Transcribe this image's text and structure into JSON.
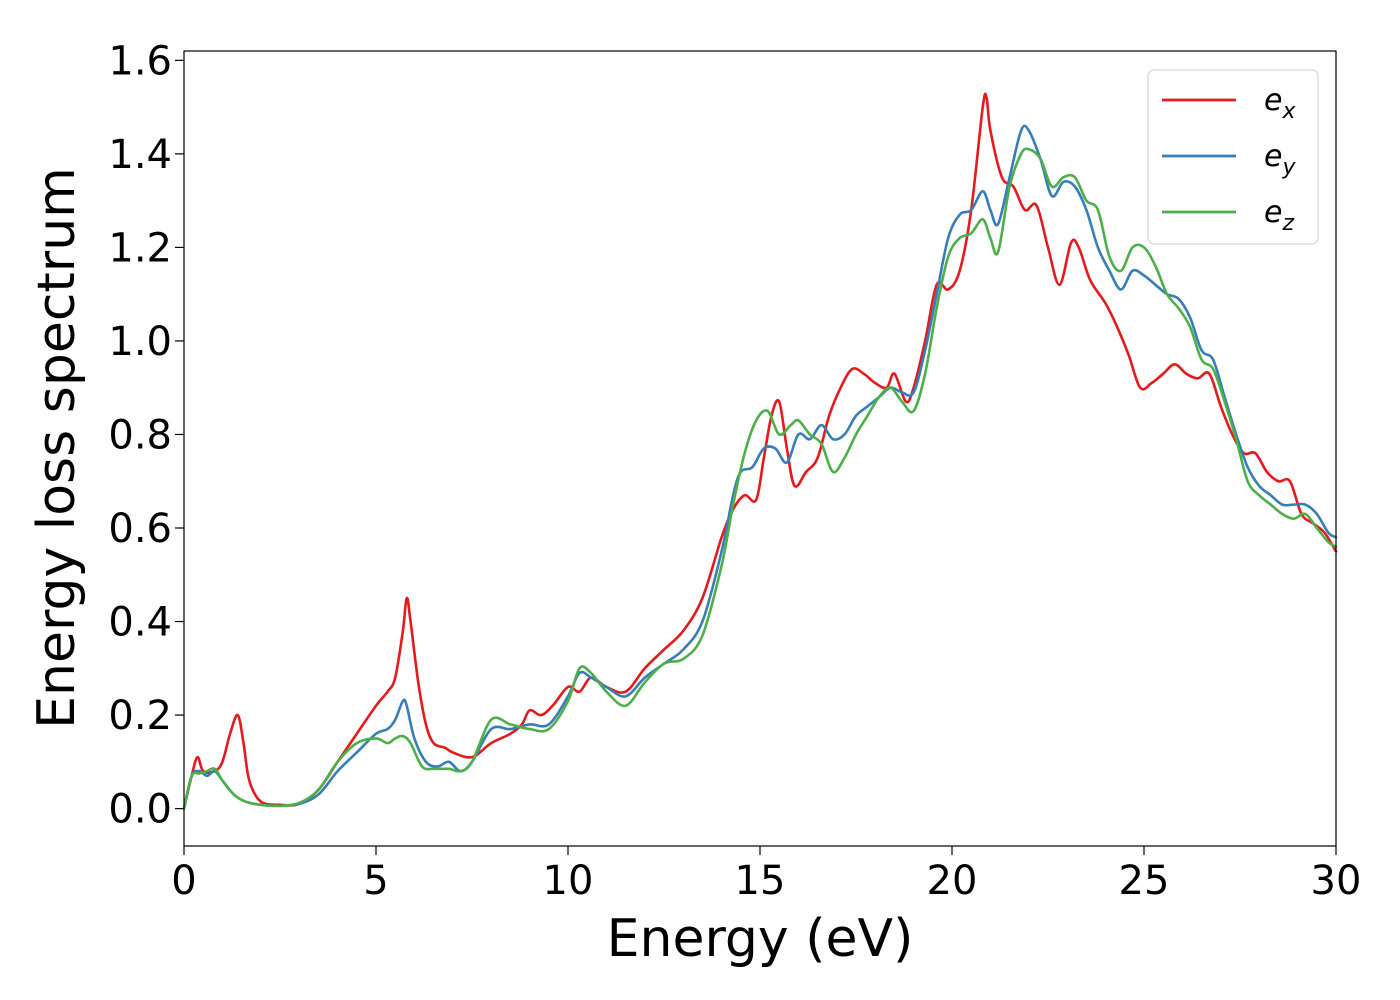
{
  "chart_data": {
    "type": "line",
    "title": "",
    "xlabel": "Energy (eV)",
    "ylabel": "Energy loss spectrum",
    "xlim": [
      0,
      30
    ],
    "ylim": [
      -0.08,
      1.62
    ],
    "xticks": [
      0,
      5,
      10,
      15,
      20,
      25,
      30
    ],
    "xtick_labels": [
      "0",
      "5",
      "10",
      "15",
      "20",
      "25",
      "30"
    ],
    "yticks": [
      0.0,
      0.2,
      0.4,
      0.6,
      0.8,
      1.0,
      1.2,
      1.4,
      1.6
    ],
    "ytick_labels": [
      "0.0",
      "0.2",
      "0.4",
      "0.6",
      "0.8",
      "1.0",
      "1.2",
      "1.4",
      "1.6"
    ],
    "grid": false,
    "legend_position": "top-right",
    "series": [
      {
        "name": "e_x",
        "label_main": "e",
        "label_sub": "x",
        "color": "#e41a1c",
        "points": [
          [
            0,
            0
          ],
          [
            0.2,
            0.07
          ],
          [
            0.35,
            0.11
          ],
          [
            0.5,
            0.08
          ],
          [
            0.8,
            0.08
          ],
          [
            1.0,
            0.1
          ],
          [
            1.2,
            0.16
          ],
          [
            1.4,
            0.2
          ],
          [
            1.55,
            0.14
          ],
          [
            1.7,
            0.06
          ],
          [
            2.0,
            0.015
          ],
          [
            2.5,
            0.008
          ],
          [
            3.0,
            0.01
          ],
          [
            3.5,
            0.04
          ],
          [
            4.0,
            0.1
          ],
          [
            4.5,
            0.16
          ],
          [
            5.0,
            0.22
          ],
          [
            5.3,
            0.25
          ],
          [
            5.5,
            0.28
          ],
          [
            5.7,
            0.38
          ],
          [
            5.8,
            0.45
          ],
          [
            5.9,
            0.4
          ],
          [
            6.1,
            0.27
          ],
          [
            6.3,
            0.18
          ],
          [
            6.5,
            0.14
          ],
          [
            6.8,
            0.13
          ],
          [
            7.0,
            0.12
          ],
          [
            7.5,
            0.11
          ],
          [
            8.0,
            0.14
          ],
          [
            8.5,
            0.16
          ],
          [
            8.8,
            0.18
          ],
          [
            9.0,
            0.21
          ],
          [
            9.3,
            0.2
          ],
          [
            9.6,
            0.22
          ],
          [
            10.0,
            0.26
          ],
          [
            10.3,
            0.25
          ],
          [
            10.6,
            0.28
          ],
          [
            11.0,
            0.26
          ],
          [
            11.5,
            0.25
          ],
          [
            12.0,
            0.3
          ],
          [
            12.5,
            0.34
          ],
          [
            13.0,
            0.38
          ],
          [
            13.5,
            0.45
          ],
          [
            14.0,
            0.58
          ],
          [
            14.3,
            0.64
          ],
          [
            14.6,
            0.67
          ],
          [
            14.9,
            0.66
          ],
          [
            15.1,
            0.75
          ],
          [
            15.3,
            0.84
          ],
          [
            15.5,
            0.87
          ],
          [
            15.7,
            0.77
          ],
          [
            15.9,
            0.69
          ],
          [
            16.2,
            0.72
          ],
          [
            16.5,
            0.75
          ],
          [
            16.8,
            0.84
          ],
          [
            17.1,
            0.9
          ],
          [
            17.4,
            0.94
          ],
          [
            17.7,
            0.93
          ],
          [
            18.0,
            0.91
          ],
          [
            18.3,
            0.9
          ],
          [
            18.5,
            0.93
          ],
          [
            18.8,
            0.87
          ],
          [
            19.0,
            0.9
          ],
          [
            19.3,
            1.0
          ],
          [
            19.6,
            1.12
          ],
          [
            19.9,
            1.11
          ],
          [
            20.2,
            1.15
          ],
          [
            20.5,
            1.28
          ],
          [
            20.8,
            1.5
          ],
          [
            20.9,
            1.52
          ],
          [
            21.0,
            1.45
          ],
          [
            21.3,
            1.35
          ],
          [
            21.6,
            1.33
          ],
          [
            21.9,
            1.28
          ],
          [
            22.2,
            1.29
          ],
          [
            22.5,
            1.2
          ],
          [
            22.8,
            1.12
          ],
          [
            23.1,
            1.21
          ],
          [
            23.3,
            1.2
          ],
          [
            23.6,
            1.13
          ],
          [
            24.0,
            1.08
          ],
          [
            24.3,
            1.03
          ],
          [
            24.6,
            0.97
          ],
          [
            24.9,
            0.9
          ],
          [
            25.2,
            0.91
          ],
          [
            25.5,
            0.93
          ],
          [
            25.8,
            0.95
          ],
          [
            26.1,
            0.93
          ],
          [
            26.4,
            0.92
          ],
          [
            26.7,
            0.93
          ],
          [
            27.0,
            0.86
          ],
          [
            27.3,
            0.8
          ],
          [
            27.6,
            0.76
          ],
          [
            27.9,
            0.76
          ],
          [
            28.2,
            0.72
          ],
          [
            28.5,
            0.7
          ],
          [
            28.8,
            0.7
          ],
          [
            29.1,
            0.63
          ],
          [
            29.4,
            0.61
          ],
          [
            29.7,
            0.59
          ],
          [
            30.0,
            0.55
          ]
        ]
      },
      {
        "name": "e_y",
        "label_main": "e",
        "label_sub": "y",
        "color": "#377eb8",
        "points": [
          [
            0,
            0
          ],
          [
            0.2,
            0.07
          ],
          [
            0.4,
            0.08
          ],
          [
            0.6,
            0.07
          ],
          [
            0.8,
            0.08
          ],
          [
            1.0,
            0.06
          ],
          [
            1.3,
            0.03
          ],
          [
            1.6,
            0.015
          ],
          [
            2.0,
            0.008
          ],
          [
            2.5,
            0.006
          ],
          [
            3.0,
            0.01
          ],
          [
            3.5,
            0.03
          ],
          [
            4.0,
            0.08
          ],
          [
            4.5,
            0.12
          ],
          [
            5.0,
            0.16
          ],
          [
            5.3,
            0.17
          ],
          [
            5.5,
            0.19
          ],
          [
            5.7,
            0.23
          ],
          [
            5.8,
            0.22
          ],
          [
            6.0,
            0.15
          ],
          [
            6.3,
            0.1
          ],
          [
            6.6,
            0.09
          ],
          [
            6.9,
            0.1
          ],
          [
            7.2,
            0.08
          ],
          [
            7.5,
            0.1
          ],
          [
            8.0,
            0.17
          ],
          [
            8.5,
            0.17
          ],
          [
            9.0,
            0.18
          ],
          [
            9.5,
            0.18
          ],
          [
            10.0,
            0.24
          ],
          [
            10.3,
            0.29
          ],
          [
            10.6,
            0.28
          ],
          [
            11.0,
            0.26
          ],
          [
            11.5,
            0.24
          ],
          [
            12.0,
            0.28
          ],
          [
            12.5,
            0.31
          ],
          [
            13.0,
            0.34
          ],
          [
            13.5,
            0.4
          ],
          [
            14.0,
            0.55
          ],
          [
            14.3,
            0.67
          ],
          [
            14.5,
            0.72
          ],
          [
            14.8,
            0.73
          ],
          [
            15.1,
            0.77
          ],
          [
            15.4,
            0.77
          ],
          [
            15.7,
            0.74
          ],
          [
            16.0,
            0.8
          ],
          [
            16.3,
            0.79
          ],
          [
            16.6,
            0.82
          ],
          [
            16.9,
            0.79
          ],
          [
            17.2,
            0.8
          ],
          [
            17.5,
            0.84
          ],
          [
            17.8,
            0.86
          ],
          [
            18.1,
            0.88
          ],
          [
            18.4,
            0.9
          ],
          [
            18.7,
            0.89
          ],
          [
            19.0,
            0.89
          ],
          [
            19.3,
            0.98
          ],
          [
            19.6,
            1.1
          ],
          [
            19.9,
            1.22
          ],
          [
            20.2,
            1.27
          ],
          [
            20.5,
            1.28
          ],
          [
            20.8,
            1.32
          ],
          [
            21.0,
            1.28
          ],
          [
            21.2,
            1.25
          ],
          [
            21.5,
            1.35
          ],
          [
            21.8,
            1.45
          ],
          [
            22.0,
            1.45
          ],
          [
            22.3,
            1.39
          ],
          [
            22.6,
            1.31
          ],
          [
            22.9,
            1.34
          ],
          [
            23.2,
            1.33
          ],
          [
            23.5,
            1.28
          ],
          [
            23.8,
            1.2
          ],
          [
            24.1,
            1.15
          ],
          [
            24.4,
            1.11
          ],
          [
            24.7,
            1.15
          ],
          [
            25.0,
            1.14
          ],
          [
            25.3,
            1.12
          ],
          [
            25.6,
            1.1
          ],
          [
            25.9,
            1.09
          ],
          [
            26.2,
            1.05
          ],
          [
            26.5,
            0.98
          ],
          [
            26.8,
            0.96
          ],
          [
            27.1,
            0.88
          ],
          [
            27.4,
            0.8
          ],
          [
            27.7,
            0.73
          ],
          [
            28.0,
            0.69
          ],
          [
            28.3,
            0.67
          ],
          [
            28.6,
            0.65
          ],
          [
            28.9,
            0.65
          ],
          [
            29.2,
            0.65
          ],
          [
            29.5,
            0.63
          ],
          [
            29.8,
            0.59
          ],
          [
            30.0,
            0.58
          ]
        ]
      },
      {
        "name": "e_z",
        "label_main": "e",
        "label_sub": "z",
        "color": "#4daf4a",
        "points": [
          [
            0,
            0
          ],
          [
            0.2,
            0.07
          ],
          [
            0.4,
            0.075
          ],
          [
            0.6,
            0.08
          ],
          [
            0.8,
            0.085
          ],
          [
            1.0,
            0.06
          ],
          [
            1.3,
            0.03
          ],
          [
            1.6,
            0.015
          ],
          [
            2.0,
            0.008
          ],
          [
            2.5,
            0.006
          ],
          [
            3.0,
            0.012
          ],
          [
            3.5,
            0.04
          ],
          [
            4.0,
            0.1
          ],
          [
            4.5,
            0.14
          ],
          [
            5.0,
            0.15
          ],
          [
            5.3,
            0.14
          ],
          [
            5.5,
            0.15
          ],
          [
            5.7,
            0.155
          ],
          [
            5.9,
            0.14
          ],
          [
            6.2,
            0.09
          ],
          [
            6.5,
            0.085
          ],
          [
            6.9,
            0.085
          ],
          [
            7.2,
            0.08
          ],
          [
            7.5,
            0.1
          ],
          [
            8.0,
            0.19
          ],
          [
            8.5,
            0.18
          ],
          [
            9.0,
            0.17
          ],
          [
            9.5,
            0.17
          ],
          [
            10.0,
            0.23
          ],
          [
            10.3,
            0.3
          ],
          [
            10.6,
            0.29
          ],
          [
            11.0,
            0.25
          ],
          [
            11.5,
            0.22
          ],
          [
            12.0,
            0.27
          ],
          [
            12.5,
            0.31
          ],
          [
            13.0,
            0.32
          ],
          [
            13.5,
            0.37
          ],
          [
            14.0,
            0.52
          ],
          [
            14.3,
            0.65
          ],
          [
            14.6,
            0.76
          ],
          [
            14.9,
            0.83
          ],
          [
            15.2,
            0.85
          ],
          [
            15.5,
            0.8
          ],
          [
            15.8,
            0.82
          ],
          [
            16.0,
            0.83
          ],
          [
            16.3,
            0.8
          ],
          [
            16.6,
            0.78
          ],
          [
            16.9,
            0.72
          ],
          [
            17.2,
            0.75
          ],
          [
            17.5,
            0.8
          ],
          [
            17.8,
            0.84
          ],
          [
            18.1,
            0.88
          ],
          [
            18.4,
            0.9
          ],
          [
            18.7,
            0.87
          ],
          [
            19.0,
            0.85
          ],
          [
            19.3,
            0.93
          ],
          [
            19.6,
            1.07
          ],
          [
            19.9,
            1.18
          ],
          [
            20.2,
            1.22
          ],
          [
            20.5,
            1.23
          ],
          [
            20.8,
            1.26
          ],
          [
            21.0,
            1.22
          ],
          [
            21.2,
            1.19
          ],
          [
            21.5,
            1.33
          ],
          [
            21.8,
            1.4
          ],
          [
            22.0,
            1.41
          ],
          [
            22.3,
            1.39
          ],
          [
            22.6,
            1.33
          ],
          [
            22.9,
            1.35
          ],
          [
            23.2,
            1.35
          ],
          [
            23.5,
            1.3
          ],
          [
            23.8,
            1.28
          ],
          [
            24.1,
            1.18
          ],
          [
            24.4,
            1.15
          ],
          [
            24.7,
            1.2
          ],
          [
            25.0,
            1.2
          ],
          [
            25.3,
            1.16
          ],
          [
            25.6,
            1.1
          ],
          [
            25.9,
            1.07
          ],
          [
            26.2,
            1.03
          ],
          [
            26.5,
            0.96
          ],
          [
            26.8,
            0.94
          ],
          [
            27.1,
            0.87
          ],
          [
            27.4,
            0.79
          ],
          [
            27.7,
            0.7
          ],
          [
            28.0,
            0.67
          ],
          [
            28.3,
            0.65
          ],
          [
            28.6,
            0.63
          ],
          [
            28.9,
            0.62
          ],
          [
            29.2,
            0.63
          ],
          [
            29.5,
            0.6
          ],
          [
            29.8,
            0.57
          ],
          [
            30.0,
            0.56
          ]
        ]
      }
    ]
  }
}
